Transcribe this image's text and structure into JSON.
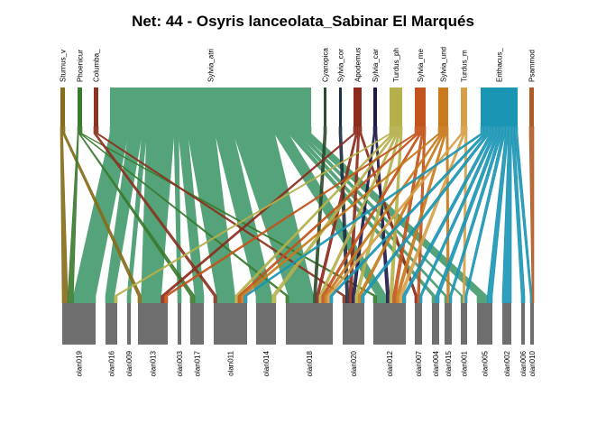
{
  "title": "Net: 44 - Osyris lanceolata_Sabinar El Marqués",
  "lower_color": "#6e6e6e",
  "upper_nodes": [
    {
      "id": "u0",
      "label": "Sturnus_v",
      "color": "#856c1a"
    },
    {
      "id": "u1",
      "label": "Phoenicur",
      "color": "#3a7a2e"
    },
    {
      "id": "u2",
      "label": "Columba_",
      "color": "#8b3220"
    },
    {
      "id": "u3",
      "label": "Sylvia_atri",
      "color": "#55a37a"
    },
    {
      "id": "u4",
      "label": "Cyanopica",
      "color": "#2c4a2c"
    },
    {
      "id": "u5",
      "label": "Sylvia_cor",
      "color": "#1e2f40"
    },
    {
      "id": "u6",
      "label": "Apodemus",
      "color": "#8e2a1c"
    },
    {
      "id": "u7",
      "label": "Sylvia_car",
      "color": "#1e1a4a"
    },
    {
      "id": "u8",
      "label": "Turdus_ph",
      "color": "#b5b04c"
    },
    {
      "id": "u9",
      "label": "Sylvia_me",
      "color": "#c2531c"
    },
    {
      "id": "u10",
      "label": "Sylvia_und",
      "color": "#c87a1c"
    },
    {
      "id": "u11",
      "label": "Turdus_m",
      "color": "#d6a04a"
    },
    {
      "id": "u12",
      "label": "Erithacus_",
      "color": "#1a95b4"
    },
    {
      "id": "u13",
      "label": "Psammod",
      "color": "#b05a26"
    }
  ],
  "lower_nodes": [
    {
      "id": "l0",
      "label": "olan019"
    },
    {
      "id": "l1",
      "label": "olan016"
    },
    {
      "id": "l2",
      "label": "olan009"
    },
    {
      "id": "l3",
      "label": "olan013"
    },
    {
      "id": "l4",
      "label": "olan003"
    },
    {
      "id": "l5",
      "label": "olan017"
    },
    {
      "id": "l6",
      "label": "olan011"
    },
    {
      "id": "l7",
      "label": "olan014"
    },
    {
      "id": "l8",
      "label": "olan018"
    },
    {
      "id": "l9",
      "label": "olan020"
    },
    {
      "id": "l10",
      "label": "olan012"
    },
    {
      "id": "l11",
      "label": "olan007"
    },
    {
      "id": "l12",
      "label": "olan004"
    },
    {
      "id": "l13",
      "label": "olan015"
    },
    {
      "id": "l14",
      "label": "olan001"
    },
    {
      "id": "l15",
      "label": "olan005"
    },
    {
      "id": "l16",
      "label": "olan002"
    },
    {
      "id": "l17",
      "label": "olan006"
    },
    {
      "id": "l18",
      "label": "olan010"
    }
  ],
  "links": [
    [
      "u0",
      "l0",
      1
    ],
    [
      "u0",
      "l3",
      1
    ],
    [
      "u1",
      "l0",
      1
    ],
    [
      "u1",
      "l5",
      1
    ],
    [
      "u1",
      "l8",
      1
    ],
    [
      "u1",
      "l10",
      1
    ],
    [
      "u2",
      "l6",
      1
    ],
    [
      "u2",
      "l9",
      1
    ],
    [
      "u3",
      "l0",
      4
    ],
    [
      "u3",
      "l1",
      3
    ],
    [
      "u3",
      "l2",
      1
    ],
    [
      "u3",
      "l3",
      6
    ],
    [
      "u3",
      "l4",
      1
    ],
    [
      "u3",
      "l5",
      2
    ],
    [
      "u3",
      "l6",
      6
    ],
    [
      "u3",
      "l7",
      4
    ],
    [
      "u3",
      "l8",
      9
    ],
    [
      "u3",
      "l10",
      3
    ],
    [
      "u3",
      "l12",
      1
    ],
    [
      "u3",
      "l13",
      1
    ],
    [
      "u3",
      "l14",
      1
    ],
    [
      "u3",
      "l15",
      2
    ],
    [
      "u4",
      "l8",
      1
    ],
    [
      "u5",
      "l9",
      1
    ],
    [
      "u6",
      "l3",
      1
    ],
    [
      "u6",
      "l8",
      1
    ],
    [
      "u6",
      "l9",
      1
    ],
    [
      "u6",
      "l11",
      1
    ],
    [
      "u7",
      "l9",
      1
    ],
    [
      "u7",
      "l10",
      1
    ],
    [
      "u8",
      "l1",
      1
    ],
    [
      "u8",
      "l6",
      1
    ],
    [
      "u8",
      "l7",
      1
    ],
    [
      "u8",
      "l8",
      1
    ],
    [
      "u8",
      "l9",
      1
    ],
    [
      "u8",
      "l10",
      1
    ],
    [
      "u9",
      "l3",
      1
    ],
    [
      "u9",
      "l6",
      1
    ],
    [
      "u9",
      "l8",
      1
    ],
    [
      "u9",
      "l10",
      1
    ],
    [
      "u9",
      "l11",
      1
    ],
    [
      "u10",
      "l6",
      1
    ],
    [
      "u10",
      "l8",
      1
    ],
    [
      "u10",
      "l9",
      1
    ],
    [
      "u10",
      "l10",
      1
    ],
    [
      "u10",
      "l13",
      1
    ],
    [
      "u11",
      "l8",
      1
    ],
    [
      "u11",
      "l10",
      1
    ],
    [
      "u11",
      "l14",
      1
    ],
    [
      "u12",
      "l6",
      1
    ],
    [
      "u12",
      "l8",
      1
    ],
    [
      "u12",
      "l9",
      1
    ],
    [
      "u12",
      "l10",
      1
    ],
    [
      "u12",
      "l11",
      1
    ],
    [
      "u12",
      "l12",
      1
    ],
    [
      "u12",
      "l13",
      1
    ],
    [
      "u12",
      "l14",
      1
    ],
    [
      "u12",
      "l15",
      1
    ],
    [
      "u12",
      "l16",
      1
    ],
    [
      "u12",
      "l17",
      1
    ],
    [
      "u12",
      "l18",
      1
    ],
    [
      "u13",
      "l18",
      1
    ]
  ]
}
